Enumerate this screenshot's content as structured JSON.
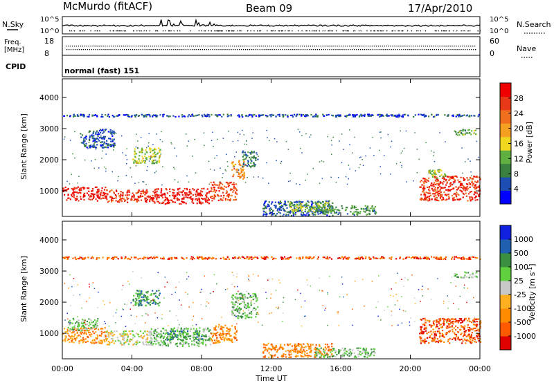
{
  "header": {
    "station": "McMurdo (fitACF)",
    "beam": "Beam 09",
    "date": "17/Apr/2010"
  },
  "noise_panel": {
    "left_label": "N.Sky",
    "right_label": "N.Search",
    "left_ticks": [
      "10^5",
      "10^0"
    ],
    "right_ticks": [
      "10^5",
      "10^0"
    ]
  },
  "freq_panel": {
    "left_label_1": "Freq.",
    "left_label_2": "[MHz]",
    "right_label": "Nave",
    "left_ticks": [
      "18",
      "8"
    ],
    "right_ticks": [
      "60",
      "0"
    ]
  },
  "cpid": {
    "label": "CPID",
    "value": "normal (fast) 151"
  },
  "x_axis": {
    "label": "Time UT",
    "ticks": [
      "00:00",
      "04:00",
      "08:00",
      "12:00",
      "16:00",
      "20:00",
      "00:00"
    ]
  },
  "colors": {
    "power": [
      "#0000ff",
      "#1e4eb4",
      "#3a8040",
      "#5fb040",
      "#f0d820",
      "#f5a020",
      "#f07020",
      "#e83818",
      "#f00000"
    ],
    "velocity": [
      "#e00000",
      "#ff5a00",
      "#ff8c00",
      "#ffb020",
      "#c8c8c8",
      "#60d040",
      "#3a9040",
      "#2060b0",
      "#1020e0"
    ]
  },
  "chart_data": [
    {
      "type": "heatmap",
      "name": "Power",
      "ylabel": "Slant Range [km]",
      "xlabel": "",
      "xlim": [
        0,
        24
      ],
      "ylim": [
        180,
        4600
      ],
      "yticks": [
        "1000",
        "2000",
        "3000",
        "4000"
      ],
      "colorbar": {
        "label": "Power [dB]",
        "ticks": [
          "4",
          "8",
          "12",
          "16",
          "20",
          "24",
          "28"
        ],
        "range": [
          0,
          32
        ]
      },
      "regions": [
        {
          "t": [
            0.0,
            2.5
          ],
          "range": [
            700,
            1150
          ],
          "level": 29
        },
        {
          "t": [
            2.5,
            5.0
          ],
          "range": [
            650,
            1050
          ],
          "level": 27
        },
        {
          "t": [
            5.0,
            8.5
          ],
          "range": [
            600,
            1100
          ],
          "level": 29
        },
        {
          "t": [
            8.5,
            10.0
          ],
          "range": [
            700,
            1300
          ],
          "level": 26
        },
        {
          "t": [
            9.7,
            10.5
          ],
          "range": [
            1400,
            2000
          ],
          "level": 21
        },
        {
          "t": [
            10.3,
            11.2
          ],
          "range": [
            1800,
            2300
          ],
          "level": 8
        },
        {
          "t": [
            4.0,
            5.6
          ],
          "range": [
            1900,
            2400
          ],
          "level": 14
        },
        {
          "t": [
            1.0,
            3.0
          ],
          "range": [
            2400,
            3000
          ],
          "level": 6
        },
        {
          "t": [
            0.0,
            24.0
          ],
          "range": [
            3400,
            3480
          ],
          "level": 5
        },
        {
          "t": [
            11.5,
            15.5
          ],
          "range": [
            200,
            700
          ],
          "level": 6
        },
        {
          "t": [
            13.0,
            15.5
          ],
          "range": [
            350,
            650
          ],
          "level": 13
        },
        {
          "t": [
            14.5,
            18.0
          ],
          "range": [
            250,
            550
          ],
          "level": 10
        },
        {
          "t": [
            20.5,
            24.0
          ],
          "range": [
            700,
            1500
          ],
          "level": 27
        },
        {
          "t": [
            21.0,
            22.0
          ],
          "range": [
            1400,
            1700
          ],
          "level": 14
        },
        {
          "t": [
            22.5,
            23.8
          ],
          "range": [
            2800,
            3000
          ],
          "level": 12
        }
      ]
    },
    {
      "type": "heatmap",
      "name": "Velocity",
      "ylabel": "Slant Range [km]",
      "xlabel": "Time UT",
      "xlim": [
        0,
        24
      ],
      "ylim": [
        180,
        4600
      ],
      "yticks": [
        "1000",
        "2000",
        "3000",
        "4000"
      ],
      "colorbar": {
        "label": "Velocity [m s^-1]",
        "ticks": [
          "-1000",
          "-500",
          "-100",
          "-25",
          "25",
          "100",
          "500",
          "1000"
        ],
        "range": [
          -1500,
          1500
        ]
      },
      "regions": [
        {
          "t": [
            0.0,
            2.5
          ],
          "range": [
            700,
            1200
          ],
          "level": "-100"
        },
        {
          "t": [
            0.3,
            2.0
          ],
          "range": [
            1100,
            1500
          ],
          "level": "100"
        },
        {
          "t": [
            2.5,
            5.0
          ],
          "range": [
            650,
            1100
          ],
          "level": "25"
        },
        {
          "t": [
            5.0,
            8.5
          ],
          "range": [
            600,
            1200
          ],
          "level": "100"
        },
        {
          "t": [
            6.0,
            8.0
          ],
          "range": [
            800,
            1100
          ],
          "level": "500"
        },
        {
          "t": [
            8.5,
            10.0
          ],
          "range": [
            700,
            1300
          ],
          "level": "-100"
        },
        {
          "t": [
            9.7,
            11.2
          ],
          "range": [
            1500,
            2300
          ],
          "level": "100"
        },
        {
          "t": [
            4.0,
            5.6
          ],
          "range": [
            1900,
            2400
          ],
          "level": "500"
        },
        {
          "t": [
            0.0,
            24.0
          ],
          "range": [
            3400,
            3480
          ],
          "level": "-500"
        },
        {
          "t": [
            11.5,
            15.5
          ],
          "range": [
            250,
            700
          ],
          "level": "-100"
        },
        {
          "t": [
            14.5,
            18.0
          ],
          "range": [
            250,
            550
          ],
          "level": "100"
        },
        {
          "t": [
            20.5,
            24.0
          ],
          "range": [
            700,
            1500
          ],
          "level": "-500"
        },
        {
          "t": [
            22.5,
            23.8
          ],
          "range": [
            2800,
            3000
          ],
          "level": "100"
        }
      ]
    }
  ]
}
